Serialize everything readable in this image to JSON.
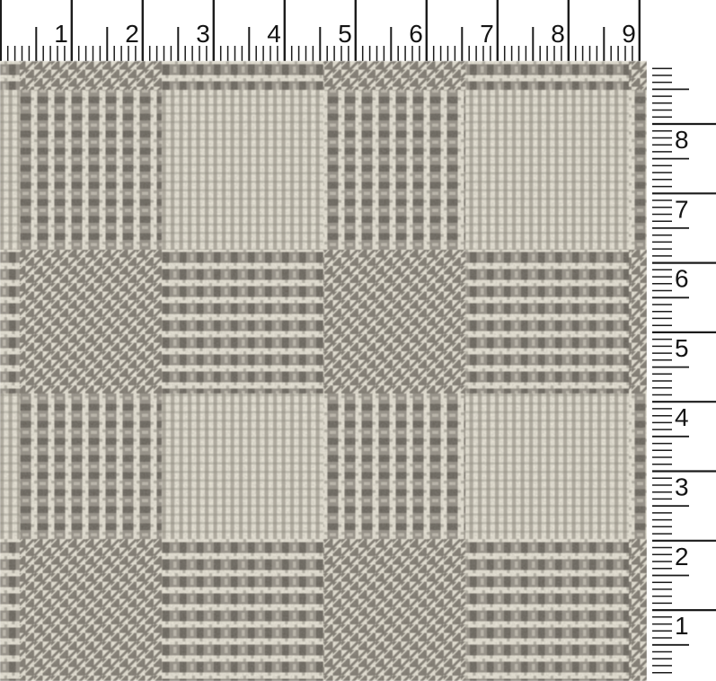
{
  "top_ruler": {
    "numbers": [
      "1",
      "2",
      "3",
      "4",
      "5",
      "6",
      "7",
      "8",
      "9"
    ],
    "subdivisions_per_unit": 10
  },
  "right_ruler": {
    "numbers": [
      "1",
      "2",
      "3",
      "4",
      "5",
      "6",
      "7",
      "8"
    ],
    "subdivisions_per_unit": 10
  },
  "fabric": {
    "description": "glen plaid houndstooth wool fabric in gray and cream"
  },
  "colors": {
    "ruler_bg": "#ffffff",
    "tick": "#1b1b1b",
    "number": "#141414",
    "cream": "#ece8da",
    "gray": "#7e7970",
    "dark": "#67625a",
    "stripe": "#8a857b"
  }
}
